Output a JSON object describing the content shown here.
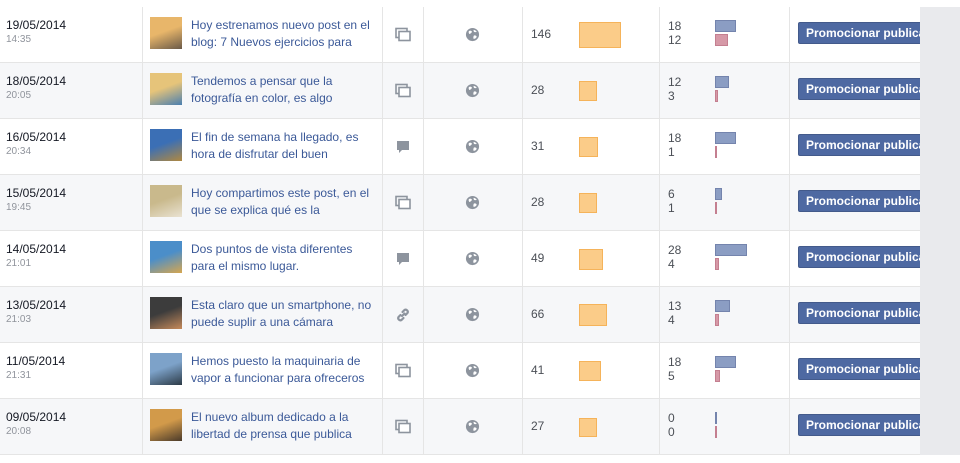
{
  "promote_label": "Promocionar publicación",
  "colors": {
    "link": "#3b5998",
    "reach_bar": "#fbcc89",
    "bar_blue": "#8b9dc3",
    "bar_pink": "#d699a7",
    "button": "#4e69a2"
  },
  "posts": [
    {
      "date": "19/05/2014",
      "time": "14:35",
      "title": "Hoy estrenamos nuevo post en el blog: 7 Nuevos ejercicios para",
      "type_icon": "album-icon",
      "reach": "146",
      "engagement_1": "18",
      "engagement_2": "12",
      "thumb": [
        "#e8b66a",
        "#6a5a48"
      ]
    },
    {
      "date": "18/05/2014",
      "time": "20:05",
      "title": "Tendemos a pensar que la fotografía en color, es algo",
      "type_icon": "album-icon",
      "reach": "28",
      "engagement_1": "12",
      "engagement_2": "3",
      "thumb": [
        "#e6c47a",
        "#4a7fb0"
      ]
    },
    {
      "date": "16/05/2014",
      "time": "20:34",
      "title": "El fin de semana ha llegado, es hora de disfrutar del buen",
      "type_icon": "comment-icon",
      "reach": "31",
      "engagement_1": "18",
      "engagement_2": "1",
      "thumb": [
        "#3b6fb5",
        "#b08840"
      ]
    },
    {
      "date": "15/05/2014",
      "time": "19:45",
      "title": "Hoy compartimos este post, en el que se explica qué es la",
      "type_icon": "album-icon",
      "reach": "28",
      "engagement_1": "6",
      "engagement_2": "1",
      "thumb": [
        "#c9b98c",
        "#e9e2d2"
      ]
    },
    {
      "date": "14/05/2014",
      "time": "21:01",
      "title": "Dos puntos de vista diferentes para el mismo lugar.",
      "type_icon": "comment-icon",
      "reach": "49",
      "engagement_1": "28",
      "engagement_2": "4",
      "thumb": [
        "#4b8ec9",
        "#d6a64f"
      ]
    },
    {
      "date": "13/05/2014",
      "time": "21:03",
      "title": "Esta claro que un smartphone, no puede suplir a una cámara",
      "type_icon": "link-icon",
      "reach": "66",
      "engagement_1": "13",
      "engagement_2": "4",
      "thumb": [
        "#3c3c3c",
        "#c68a5a"
      ]
    },
    {
      "date": "11/05/2014",
      "time": "21:31",
      "title": "Hemos puesto la maquinaria de vapor a funcionar para ofreceros",
      "type_icon": "album-icon",
      "reach": "41",
      "engagement_1": "18",
      "engagement_2": "5",
      "thumb": [
        "#7da2c9",
        "#2c3a46"
      ]
    },
    {
      "date": "09/05/2014",
      "time": "20:08",
      "title": "El nuevo album dedicado a la libertad de prensa que publica",
      "type_icon": "album-icon",
      "reach": "27",
      "engagement_1": "0",
      "engagement_2": "0",
      "thumb": [
        "#d29a4a",
        "#4a3a2a"
      ]
    }
  ]
}
